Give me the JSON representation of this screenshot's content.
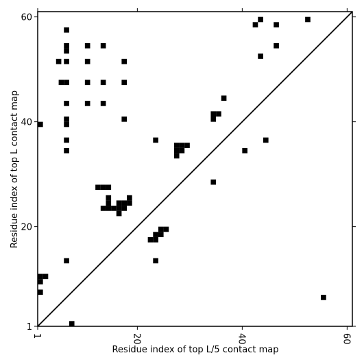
{
  "chart_data": {
    "type": "heatmap",
    "title": "",
    "xlabel": "Residue index of top L/5 contact map",
    "ylabel": "Residue index of top L contact map",
    "xlim": [
      1,
      61
    ],
    "ylim": [
      1,
      61
    ],
    "x_ticks": [
      {
        "value": 1,
        "label": "1"
      },
      {
        "value": 20,
        "label": "20"
      },
      {
        "value": 40,
        "label": "40"
      },
      {
        "value": 60,
        "label": "60"
      }
    ],
    "y_ticks": [
      {
        "value": 1,
        "label": "1"
      },
      {
        "value": 20,
        "label": "20"
      },
      {
        "value": 40,
        "label": "40"
      },
      {
        "value": 60,
        "label": "60"
      }
    ],
    "diagonal": true,
    "cell_color": "#000000",
    "upper_triangle_contacts": [
      [
        6,
        57
      ],
      [
        6,
        54
      ],
      [
        6,
        53
      ],
      [
        6,
        51
      ],
      [
        6,
        47
      ],
      [
        5,
        47
      ],
      [
        4.5,
        51
      ],
      [
        6,
        43
      ],
      [
        6,
        40
      ],
      [
        6,
        39
      ],
      [
        6,
        36
      ],
      [
        6,
        34
      ],
      [
        1,
        39
      ],
      [
        10,
        54
      ],
      [
        10,
        51
      ],
      [
        10,
        47
      ],
      [
        10,
        43
      ],
      [
        13,
        54
      ],
      [
        13,
        47
      ],
      [
        13,
        43
      ],
      [
        17,
        51
      ],
      [
        17,
        47
      ],
      [
        17,
        40
      ],
      [
        23,
        36
      ],
      [
        27,
        35
      ],
      [
        28,
        35
      ],
      [
        29,
        35
      ],
      [
        27,
        34
      ],
      [
        28,
        34
      ],
      [
        27,
        33
      ],
      [
        34,
        41
      ],
      [
        35,
        41
      ],
      [
        34,
        40
      ],
      [
        36,
        44
      ],
      [
        34,
        28
      ],
      [
        40,
        34
      ],
      [
        42,
        58
      ],
      [
        43,
        59
      ],
      [
        46,
        58
      ],
      [
        43,
        52
      ],
      [
        46,
        54
      ],
      [
        52,
        59
      ],
      [
        44,
        36
      ]
    ],
    "lower_triangle_contacts": [
      [
        12,
        27
      ],
      [
        13,
        27
      ],
      [
        14,
        27
      ],
      [
        14,
        25
      ],
      [
        14,
        24
      ],
      [
        13,
        23
      ],
      [
        14,
        23
      ],
      [
        15,
        23
      ],
      [
        16,
        23
      ],
      [
        17,
        23
      ],
      [
        16,
        24
      ],
      [
        17,
        24
      ],
      [
        18,
        24
      ],
      [
        18,
        25
      ],
      [
        16,
        22
      ],
      [
        22,
        17
      ],
      [
        23,
        17
      ],
      [
        23,
        18
      ],
      [
        24,
        18
      ],
      [
        24,
        19
      ],
      [
        25,
        19
      ],
      [
        6,
        13
      ],
      [
        23,
        13
      ],
      [
        1,
        10
      ],
      [
        2,
        10
      ],
      [
        1,
        9
      ],
      [
        1,
        7
      ],
      [
        7,
        1
      ],
      [
        55,
        6
      ]
    ]
  }
}
